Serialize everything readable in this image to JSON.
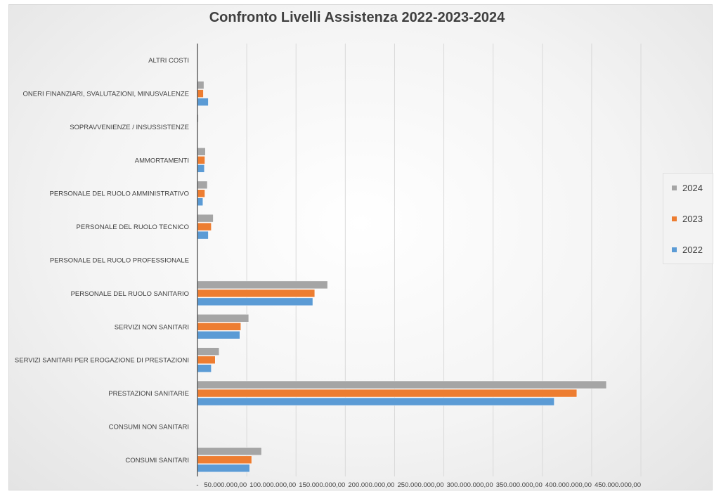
{
  "chart_data": {
    "type": "bar",
    "orientation": "horizontal",
    "title": "Confronto Livelli Assistenza 2022-2023-2024",
    "categories": [
      "CONSUMI SANITARI",
      "CONSUMI NON SANITARI",
      "PRESTAZIONI SANITARIE",
      "SERVIZI SANITARI PER EROGAZIONE DI PRESTAZIONI",
      "SERVIZI NON SANITARI",
      "PERSONALE DEL RUOLO SANITARIO",
      "PERSONALE DEL RUOLO PROFESSIONALE",
      "PERSONALE DEL RUOLO TECNICO",
      "PERSONALE DEL RUOLO AMMINISTRATIVO",
      "AMMORTAMENTI",
      "SOPRAVVENIENZE / INSUSSISTENZE",
      "ONERI FINANZIARI, SVALUTAZIONI, MINUSVALENZE",
      "ALTRI COSTI"
    ],
    "series": [
      {
        "name": "2022",
        "color": "#5b9bd5",
        "values": [
          53000000,
          200000,
          362000000,
          14000000,
          43000000,
          117000000,
          0,
          11000000,
          5500000,
          7000000,
          500000,
          11000000,
          0
        ]
      },
      {
        "name": "2023",
        "color": "#ed7d31",
        "values": [
          55000000,
          200000,
          385000000,
          18000000,
          44000000,
          119000000,
          0,
          14000000,
          7500000,
          7500000,
          500000,
          6000000,
          0
        ]
      },
      {
        "name": "2024",
        "color": "#a5a5a5",
        "values": [
          65000000,
          200000,
          415000000,
          22000000,
          52000000,
          132000000,
          0,
          16000000,
          10000000,
          8000000,
          1000000,
          6500000,
          0
        ]
      }
    ],
    "xlim": [
      0,
      450000000
    ],
    "xticks": [
      0,
      50000000,
      100000000,
      150000000,
      200000000,
      250000000,
      300000000,
      350000000,
      400000000,
      450000000
    ],
    "xtick_labels": [
      "-",
      "50.000.000,00",
      "100.000.000,00",
      "150.000.000,00",
      "200.000.000,00",
      "250.000.000,00",
      "300.000.000,00",
      "350.000.000,00",
      "400.000.000,00",
      "450.000.000,00"
    ],
    "legend": {
      "position": "right",
      "order": [
        "2024",
        "2023",
        "2022"
      ]
    },
    "grid": true
  }
}
